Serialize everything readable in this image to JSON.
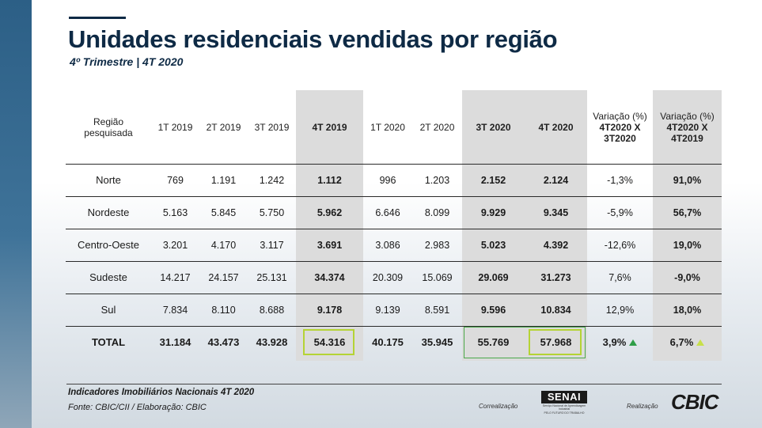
{
  "title": "Unidades residenciais vendidas por região",
  "subtitle": "4º Trimestre | 4T 2020",
  "table": {
    "headers": [
      "Região pesquisada",
      "1T 2019",
      "2T 2019",
      "3T 2019",
      "4T 2019",
      "1T 2020",
      "2T 2020",
      "3T 2020",
      "4T 2020",
      "Variação (%)",
      "Variação (%)"
    ],
    "header_sub": [
      "",
      "",
      "",
      "",
      "",
      "",
      "",
      "",
      "",
      "4T2020 X 3T2020",
      "4T2020 X 4T2019"
    ],
    "rows": [
      [
        "Norte",
        "769",
        "1.191",
        "1.242",
        "1.112",
        "996",
        "1.203",
        "2.152",
        "2.124",
        "-1,3%",
        "91,0%"
      ],
      [
        "Nordeste",
        "5.163",
        "5.845",
        "5.750",
        "5.962",
        "6.646",
        "8.099",
        "9.929",
        "9.345",
        "-5,9%",
        "56,7%"
      ],
      [
        "Centro-Oeste",
        "3.201",
        "4.170",
        "3.117",
        "3.691",
        "3.086",
        "2.983",
        "5.023",
        "4.392",
        "-12,6%",
        "19,0%"
      ],
      [
        "Sudeste",
        "14.217",
        "24.157",
        "25.131",
        "34.374",
        "20.309",
        "15.069",
        "29.069",
        "31.273",
        "7,6%",
        "-9,0%"
      ],
      [
        "Sul",
        "7.834",
        "8.110",
        "8.688",
        "9.178",
        "9.139",
        "8.591",
        "9.596",
        "10.834",
        "12,9%",
        "18,0%"
      ]
    ],
    "total": [
      "TOTAL",
      "31.184",
      "43.473",
      "43.928",
      "54.316",
      "40.175",
      "35.945",
      "55.769",
      "57.968",
      "3,9%",
      "6,7%"
    ]
  },
  "indicators": {
    "total_var_q_icon": "triangle-up-icon",
    "total_var_y_icon": "triangle-up-icon",
    "up_color": "#2e9e48",
    "up_color_light": "#c8e04a"
  },
  "footer": {
    "line1": "Indicadores Imobiliários Nacionais 4T 2020",
    "line2": "Fonte: CBIC/CII / Elaboração: CBIC",
    "correalizacao": "Correalização",
    "senai": "SENAI",
    "senai_sub1": "Serviço Nacional de Aprendizagem Industrial",
    "senai_sub2": "PELO FUTURO DO TRABALHO",
    "realizacao": "Realização",
    "cbic": "CBIC"
  }
}
